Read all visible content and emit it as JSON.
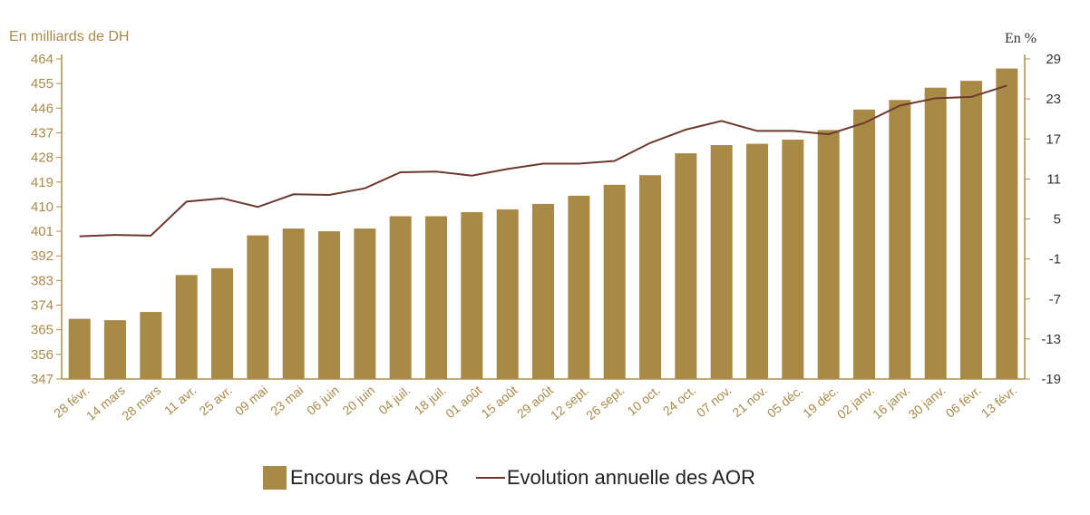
{
  "chart_data": {
    "type": "bar",
    "categories": [
      "28 févr.",
      "14 mars",
      "28 mars",
      "11 avr.",
      "25 avr.",
      "09 mai",
      "23 mai",
      "06 juin",
      "20 juin",
      "04 juil.",
      "18 juil.",
      "01 août",
      "15 août",
      "29 août",
      "12 sept.",
      "26 sept.",
      "10 oct.",
      "24 oct.",
      "07 nov.",
      "21 nov.",
      "05 déc.",
      "19 déc.",
      "02 janv.",
      "16 janv.",
      "30 janv.",
      "06 févr.",
      "13 févr."
    ],
    "series": [
      {
        "name": "Encours des AOR",
        "type": "bar",
        "axis": "left",
        "color": "#a88a46",
        "values": [
          369,
          368.5,
          371.5,
          385,
          387.5,
          399.5,
          402,
          401,
          402,
          406.5,
          406.5,
          408,
          409,
          411,
          414,
          418,
          421.5,
          429.5,
          432.5,
          433,
          434.5,
          438,
          445.5,
          449,
          453.5,
          456,
          460.5
        ]
      },
      {
        "name": "Evolution annuelle des AOR",
        "type": "line",
        "axis": "right",
        "color": "#6b3a2c",
        "values": [
          2.4,
          2.6,
          2.5,
          7.6,
          8.1,
          6.8,
          8.7,
          8.6,
          9.6,
          12,
          12.1,
          11.5,
          12.5,
          13.3,
          13.3,
          13.7,
          16.4,
          18.4,
          19.7,
          18.2,
          18.2,
          17.7,
          19.4,
          22,
          23.1,
          23.3,
          25
        ]
      }
    ],
    "y_left": {
      "label": "En milliards de DH",
      "range": [
        347,
        464
      ],
      "ticks": [
        347,
        356,
        365,
        374,
        383,
        392,
        401,
        410,
        419,
        428,
        437,
        446,
        455,
        464
      ]
    },
    "y_right": {
      "label": "En %",
      "range": [
        -19,
        29
      ],
      "ticks": [
        -19,
        -13,
        -7,
        -1,
        5,
        11,
        17,
        23,
        29
      ]
    },
    "legend": "bottom",
    "grid": false
  }
}
